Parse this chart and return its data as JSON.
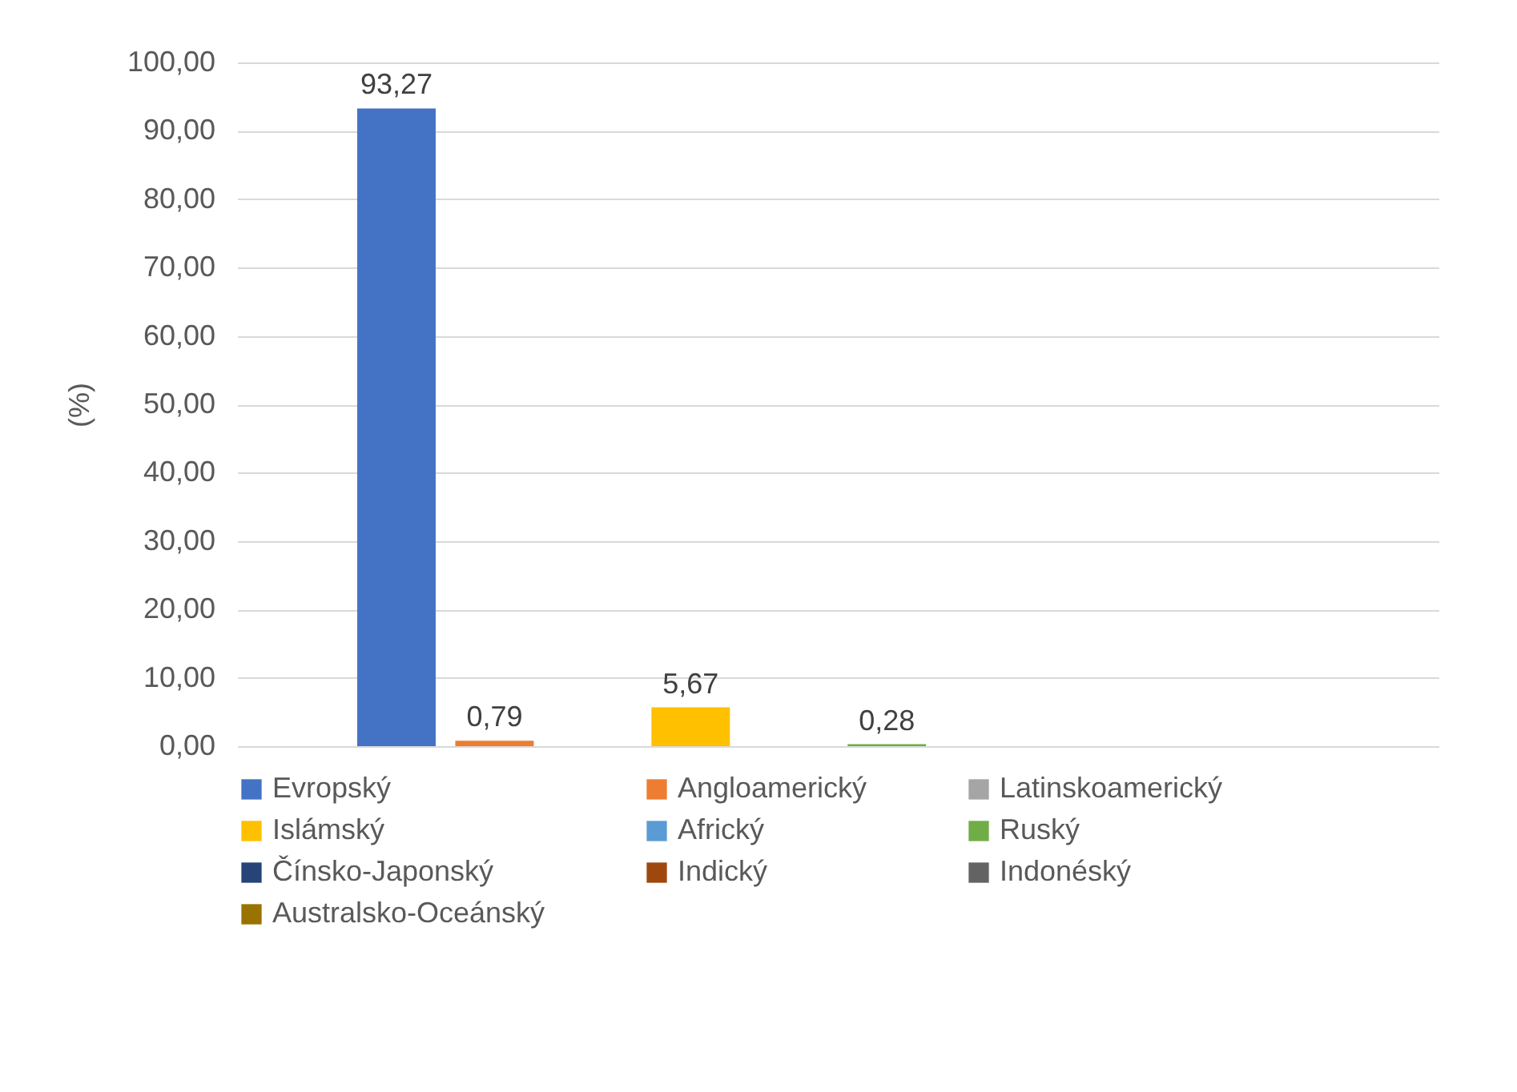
{
  "chart_data": {
    "type": "bar",
    "ylabel": "(%)",
    "categories": [
      null
    ],
    "series": [
      {
        "name": "Evropský",
        "color": "#4472c4",
        "values": [
          93.27
        ],
        "value_labels": [
          "93,27"
        ]
      },
      {
        "name": "Angloamerický",
        "color": "#ed7d31",
        "values": [
          0.79
        ],
        "value_labels": [
          "0,79"
        ]
      },
      {
        "name": "Latinskoamerický",
        "color": "#a5a5a5",
        "values": [
          0
        ],
        "value_labels": [
          null
        ]
      },
      {
        "name": "Islámský",
        "color": "#ffc000",
        "values": [
          5.67
        ],
        "value_labels": [
          "5,67"
        ]
      },
      {
        "name": "Africký",
        "color": "#5b9bd5",
        "values": [
          0
        ],
        "value_labels": [
          null
        ]
      },
      {
        "name": "Ruský",
        "color": "#70ad47",
        "values": [
          0.28
        ],
        "value_labels": [
          "0,28"
        ]
      },
      {
        "name": "Čínsko-Japonský",
        "color": "#264478",
        "values": [
          0
        ],
        "value_labels": [
          null
        ]
      },
      {
        "name": "Indický",
        "color": "#9e480e",
        "values": [
          0
        ],
        "value_labels": [
          null
        ]
      },
      {
        "name": "Indonéský",
        "color": "#636363",
        "values": [
          0
        ],
        "value_labels": [
          null
        ]
      },
      {
        "name": "Australsko-Oceánský",
        "color": "#997300",
        "values": [
          0
        ],
        "value_labels": [
          null
        ]
      }
    ],
    "ylim": [
      0,
      100
    ],
    "yticks": [
      {
        "value": 0,
        "label": "0,00"
      },
      {
        "value": 10,
        "label": "10,00"
      },
      {
        "value": 20,
        "label": "20,00"
      },
      {
        "value": 30,
        "label": "30,00"
      },
      {
        "value": 40,
        "label": "40,00"
      },
      {
        "value": 50,
        "label": "50,00"
      },
      {
        "value": 60,
        "label": "60,00"
      },
      {
        "value": 70,
        "label": "70,00"
      },
      {
        "value": 80,
        "label": "80,00"
      },
      {
        "value": 90,
        "label": "90,00"
      },
      {
        "value": 100,
        "label": "100,00"
      }
    ],
    "grid": "y",
    "legend": "bottom",
    "tick_labels": "y"
  }
}
